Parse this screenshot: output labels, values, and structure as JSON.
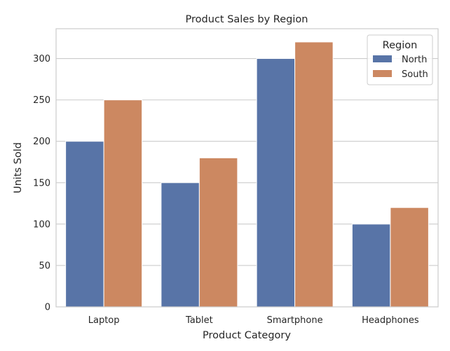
{
  "chart_data": {
    "type": "bar",
    "title": "Product Sales by Region",
    "xlabel": "Product Category",
    "ylabel": "Units Sold",
    "categories": [
      "Laptop",
      "Tablet",
      "Smartphone",
      "Headphones"
    ],
    "series": [
      {
        "name": "North",
        "values": [
          200,
          150,
          300,
          100
        ],
        "color": "#5874a7"
      },
      {
        "name": "South",
        "values": [
          250,
          180,
          320,
          120
        ],
        "color": "#cc8861"
      }
    ],
    "ylim": [
      0,
      336
    ],
    "yticks": [
      0,
      50,
      100,
      150,
      200,
      250,
      300
    ],
    "grid": true,
    "legend": {
      "title": "Region",
      "position": "top-right"
    }
  }
}
